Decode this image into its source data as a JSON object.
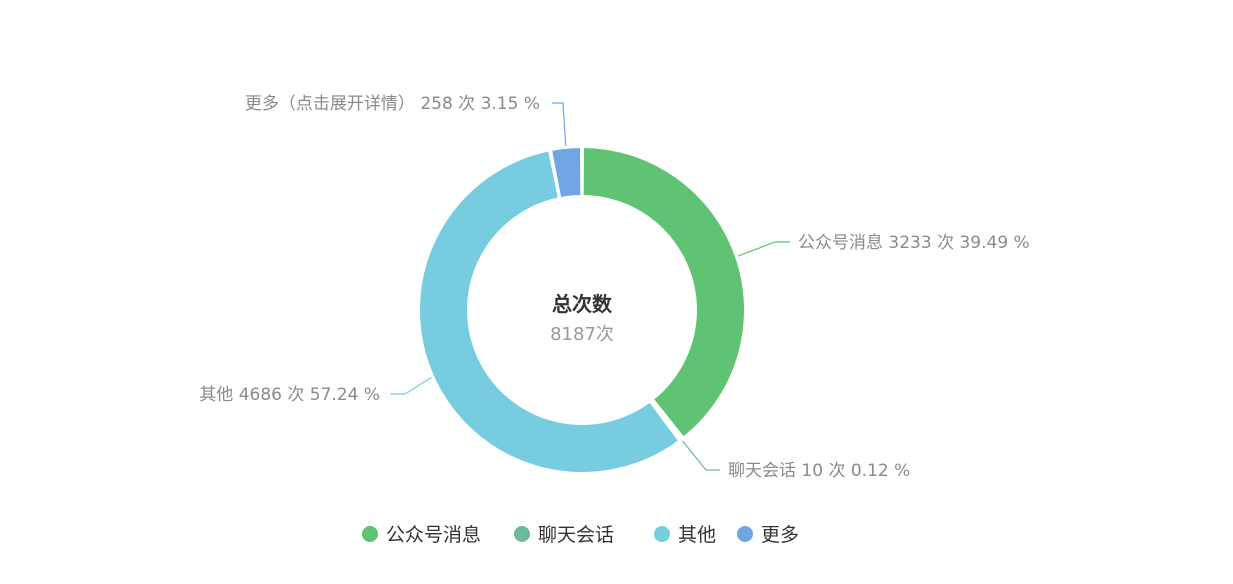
{
  "chart_data": {
    "type": "pie",
    "variant": "donut",
    "center_title": "总次数",
    "center_value": "8187次",
    "total": 8187,
    "unit": "次",
    "slices": [
      {
        "name": "公众号消息",
        "label": "公众号消息",
        "count": 3233,
        "percent": 39.49,
        "color": "#5fc373",
        "label_text": "公众号消息 3233 次 39.49 %"
      },
      {
        "name": "聊天会话",
        "label": "聊天会话",
        "count": 10,
        "percent": 0.12,
        "color": "#6cba9b",
        "label_text": "聊天会话 10 次 0.12 %"
      },
      {
        "name": "其他",
        "label": "其他",
        "count": 4686,
        "percent": 57.24,
        "color": "#77ccdf",
        "label_text": "其他 4686 次 57.24 %"
      },
      {
        "name": "更多",
        "label": "更多（点击展开详情）",
        "count": 258,
        "percent": 3.15,
        "color": "#70a6e3",
        "label_text": "更多（点击展开详情） 258 次 3.15 %"
      }
    ],
    "legend": {
      "position": "bottom",
      "items": [
        "公众号消息",
        "聊天会话",
        "其他",
        "更多"
      ]
    },
    "title": ""
  }
}
